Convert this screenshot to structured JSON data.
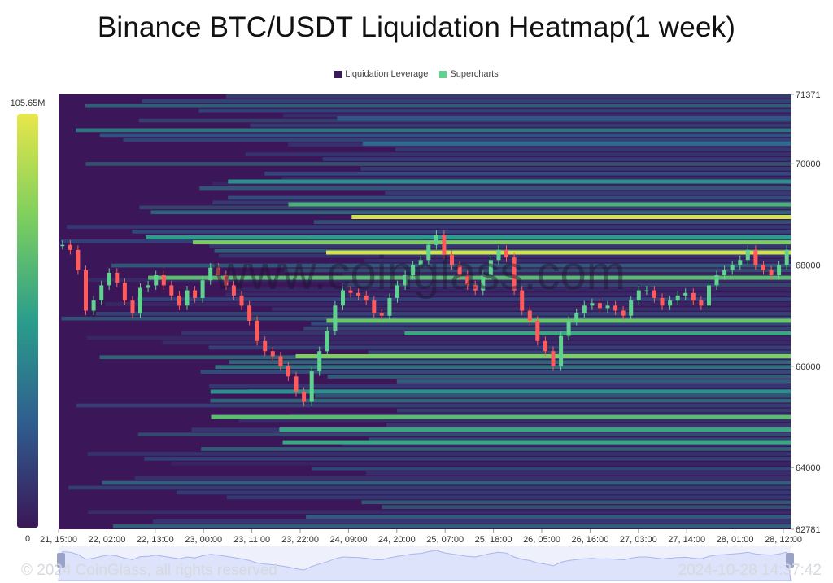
{
  "title": "Binance BTC/USDT Liquidation Heatmap(1 week)",
  "legend": [
    {
      "label": "Liquidation Leverage",
      "color": "#3a1a5c"
    },
    {
      "label": "Supercharts",
      "color": "#5fd38d"
    }
  ],
  "colorbar": {
    "max_label": "105.65M",
    "min_label": "0"
  },
  "watermark": "www.coinglass.com",
  "footer": {
    "copyright": "© 2024 CoinGlass, all rights reserved",
    "timestamp": "2024-10-28 14:37:42"
  },
  "chart_data": {
    "type": "heatmap",
    "title": "Binance BTC/USDT Liquidation Heatmap(1 week)",
    "x_ticks": [
      "21, 15:00",
      "22, 02:00",
      "22, 13:00",
      "23, 00:00",
      "23, 11:00",
      "23, 22:00",
      "24, 09:00",
      "24, 20:00",
      "25, 07:00",
      "25, 18:00",
      "26, 05:00",
      "26, 16:00",
      "27, 03:00",
      "27, 14:00",
      "28, 01:00",
      "28, 12:00"
    ],
    "y_ticks": [
      71371,
      70000,
      68000,
      66000,
      64000,
      62781
    ],
    "ylim": [
      62781,
      71371
    ],
    "colorscale": {
      "min": 0,
      "max": "105.65M"
    },
    "price_series": {
      "name": "Supercharts",
      "values": [
        68400,
        68300,
        67900,
        67100,
        67300,
        67600,
        67850,
        67650,
        67300,
        67050,
        67550,
        67600,
        67800,
        67600,
        67400,
        67200,
        67500,
        67350,
        67700,
        67950,
        67800,
        67600,
        67400,
        67200,
        66900,
        66500,
        66300,
        66200,
        66000,
        65800,
        65500,
        65300,
        65900,
        66300,
        66700,
        67200,
        67500,
        67450,
        67400,
        67300,
        67050,
        67000,
        67350,
        67600,
        67800,
        68000,
        68100,
        68400,
        68600,
        68200,
        68000,
        67800,
        67600,
        67500,
        67800,
        68100,
        68300,
        68150,
        67500,
        67100,
        66900,
        66500,
        66300,
        66000,
        66600,
        66900,
        67050,
        67200,
        67250,
        67150,
        67200,
        67100,
        67000,
        67300,
        67500,
        67500,
        67350,
        67200,
        67300,
        67400,
        67450,
        67300,
        67200,
        67600,
        67800,
        67900,
        68000,
        68100,
        68300,
        68000,
        67900,
        67800,
        68000,
        68300
      ]
    },
    "bands": [
      {
        "price": 68950,
        "intensity": 0.95
      },
      {
        "price": 68250,
        "intensity": 0.95
      },
      {
        "price": 68450,
        "intensity": 0.75
      },
      {
        "price": 69200,
        "intensity": 0.6
      },
      {
        "price": 67750,
        "intensity": 0.65
      },
      {
        "price": 66900,
        "intensity": 0.7
      },
      {
        "price": 66650,
        "intensity": 0.55
      },
      {
        "price": 66200,
        "intensity": 0.75
      },
      {
        "price": 65500,
        "intensity": 0.45
      },
      {
        "price": 65000,
        "intensity": 0.65
      },
      {
        "price": 64750,
        "intensity": 0.55
      },
      {
        "price": 64500,
        "intensity": 0.55
      },
      {
        "price": 68550,
        "intensity": 0.5
      },
      {
        "price": 69650,
        "intensity": 0.45
      },
      {
        "price": 70400,
        "intensity": 0.3
      },
      {
        "price": 70900,
        "intensity": 0.22
      }
    ],
    "grid": false,
    "legend_position": "top-center"
  }
}
